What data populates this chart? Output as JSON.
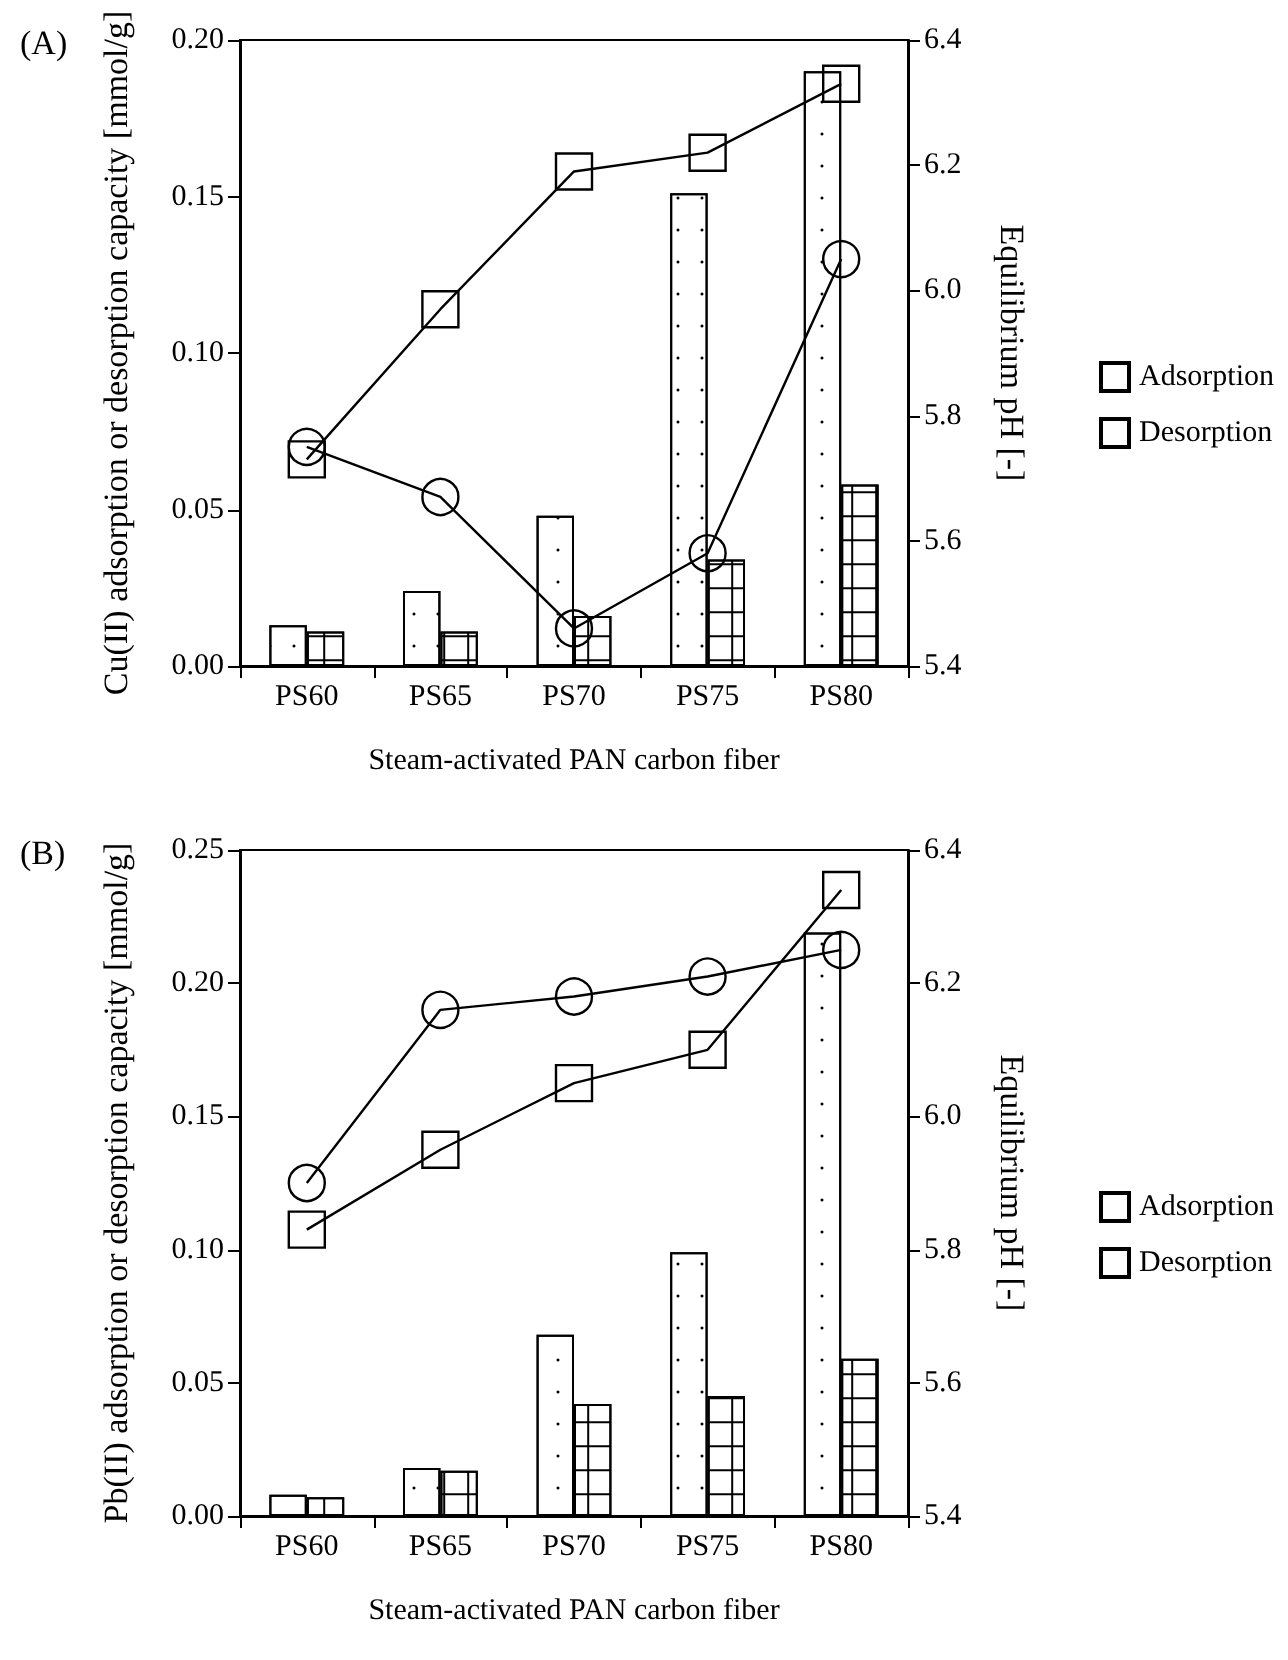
{
  "chart_data": [
    {
      "type": "bar",
      "title": "(A)",
      "xlabel": "Steam-activated PAN carbon fiber",
      "ylabel": "Cu(II) adsorption or desorption capacity [mmol/g]",
      "y2label": "Equilibrium pH [-]",
      "categories": [
        "PS60",
        "PS65",
        "PS70",
        "PS75",
        "PS80"
      ],
      "series": [
        {
          "name": "Adsorption",
          "color": "#ffffff",
          "values": [
            0.013,
            0.024,
            0.048,
            0.151,
            0.19
          ]
        },
        {
          "name": "Desorption",
          "color": "#ffffff",
          "values": [
            0.011,
            0.011,
            0.016,
            0.034,
            0.058
          ]
        },
        {
          "type": "line",
          "axis": "y2",
          "marker": "square",
          "color": "#000000",
          "values": [
            5.73,
            5.97,
            6.19,
            6.22,
            6.33
          ]
        },
        {
          "type": "line",
          "axis": "y2",
          "marker": "circle",
          "color": "#000000",
          "values": [
            5.75,
            5.67,
            5.46,
            5.58,
            6.05
          ]
        }
      ],
      "ylim": [
        0,
        0.2
      ],
      "yticks": [
        {
          "value": 0,
          "label": "0.00"
        },
        {
          "value": 0.05,
          "label": "0.05"
        },
        {
          "value": 0.1,
          "label": "0.10"
        },
        {
          "value": 0.15,
          "label": "0.15"
        },
        {
          "value": 0.2,
          "label": "0.20"
        }
      ],
      "y2lim": [
        5.4,
        6.4
      ],
      "y2ticks": [
        5.4,
        5.6,
        5.8,
        {
          "value": 6,
          "label": "6.0"
        },
        6.2,
        6.4
      ],
      "grid": false,
      "legend": "right"
    },
    {
      "type": "bar",
      "title": "(B)",
      "xlabel": "Steam-activated PAN carbon fiber",
      "ylabel": "Pb(II) adsorption or desorption capacity [mmol/g]",
      "y2label": "Equilibrium pH [-]",
      "categories": [
        "PS60",
        "PS65",
        "PS70",
        "PS75",
        "PS80"
      ],
      "series": [
        {
          "name": "Adsorption",
          "color": "#ffffff",
          "values": [
            0.008,
            0.018,
            0.068,
            0.099,
            0.219
          ]
        },
        {
          "name": "Desorption",
          "color": "#ffffff",
          "values": [
            0.007,
            0.017,
            0.042,
            0.045,
            0.059
          ]
        },
        {
          "type": "line",
          "axis": "y2",
          "marker": "square",
          "color": "#000000",
          "values": [
            5.83,
            5.95,
            6.05,
            6.1,
            6.34
          ]
        },
        {
          "type": "line",
          "axis": "y2",
          "marker": "circle",
          "color": "#000000",
          "values": [
            5.9,
            6.16,
            6.18,
            6.21,
            6.25
          ]
        }
      ],
      "ylim": [
        0,
        0.25
      ],
      "yticks": [
        {
          "value": 0,
          "label": "0.00"
        },
        {
          "value": 0.05,
          "label": "0.05"
        },
        {
          "value": 0.1,
          "label": "0.10"
        },
        {
          "value": 0.15,
          "label": "0.15"
        },
        {
          "value": 0.2,
          "label": "0.20"
        },
        {
          "value": 0.25,
          "label": "0.25"
        }
      ],
      "y2lim": [
        5.4,
        6.4
      ],
      "y2ticks": [
        5.4,
        5.6,
        5.8,
        {
          "value": 6,
          "label": "6.0"
        },
        6.2,
        6.4
      ],
      "grid": false,
      "legend": "right"
    }
  ]
}
